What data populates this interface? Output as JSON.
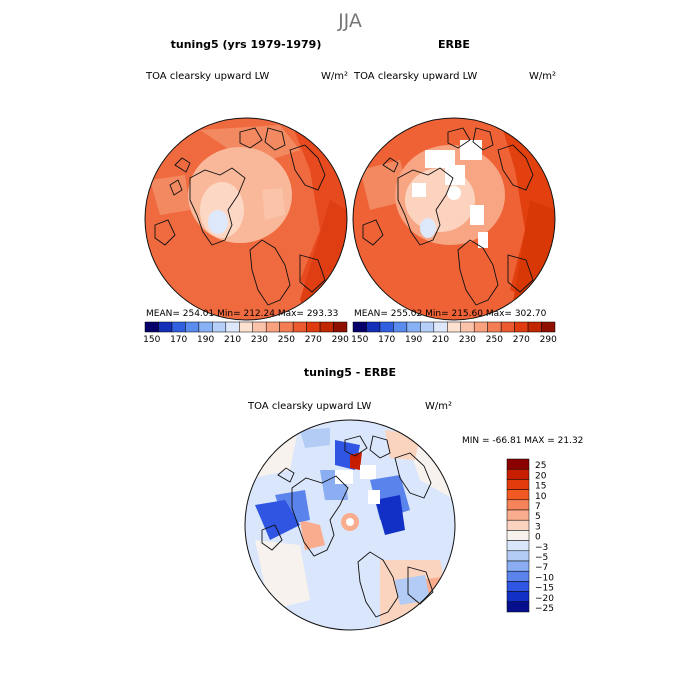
{
  "season": "JJA",
  "panels": [
    {
      "title": "tuning5 (yrs 1979-1979)",
      "variable": "TOA clearsky upward LW",
      "units": "W/m²",
      "stats": "MEAN=  254.01   Min=  212.24   Max=  293.33"
    },
    {
      "title": "ERBE",
      "variable": "TOA clearsky upward LW",
      "units": "W/m²",
      "stats": "MEAN=  255.02   Min=  215.60   Max=  302.70"
    }
  ],
  "diff_panel": {
    "title": "tuning5 - ERBE",
    "variable": "TOA clearsky upward LW",
    "units": "W/m²",
    "stats": "MIN =  -66.81  MAX =   21.32"
  },
  "chart_data": [
    {
      "type": "heatmap",
      "projection": "north-polar-stereographic",
      "title": "tuning5 (yrs 1979-1979)",
      "variable": "TOA clearsky upward LW",
      "units": "W/m²",
      "mean": 254.01,
      "min": 212.24,
      "max": 293.33,
      "colorbar": {
        "ticks": [
          150,
          170,
          190,
          210,
          230,
          250,
          270,
          290
        ]
      }
    },
    {
      "type": "heatmap",
      "projection": "north-polar-stereographic",
      "title": "ERBE",
      "variable": "TOA clearsky upward LW",
      "units": "W/m²",
      "mean": 255.02,
      "min": 215.6,
      "max": 302.7,
      "colorbar": {
        "ticks": [
          150,
          170,
          190,
          210,
          230,
          250,
          270,
          290
        ]
      }
    },
    {
      "type": "heatmap",
      "projection": "north-polar-stereographic",
      "title": "tuning5 - ERBE",
      "variable": "TOA clearsky upward LW",
      "units": "W/m²",
      "min": -66.81,
      "max": 21.32,
      "colorbar": {
        "ticks": [
          "25",
          "20",
          "15",
          "10",
          "7",
          "5",
          "3",
          "0",
          "−3",
          "−5",
          "−7",
          "−10",
          "−15",
          "−20",
          "−25"
        ]
      }
    }
  ],
  "colors": {
    "abs_scale": [
      "#08006a",
      "#1530b8",
      "#3060e0",
      "#5a8cf0",
      "#88b0f5",
      "#b5cff8",
      "#dde8fb",
      "#fde2d2",
      "#fbc4aa",
      "#f8a27f",
      "#f47d55",
      "#ee5a30",
      "#e03c10",
      "#c22800",
      "#8e1000"
    ],
    "diff_scale": [
      "#8b0000",
      "#c81e00",
      "#e33b0c",
      "#f25a24",
      "#f6835a",
      "#f9ad8e",
      "#fbd4c0",
      "#f7f2ee",
      "#d9e6fb",
      "#b2ccf6",
      "#8aaef1",
      "#5b83ec",
      "#2f55e2",
      "#1230c6",
      "#07108c"
    ]
  }
}
